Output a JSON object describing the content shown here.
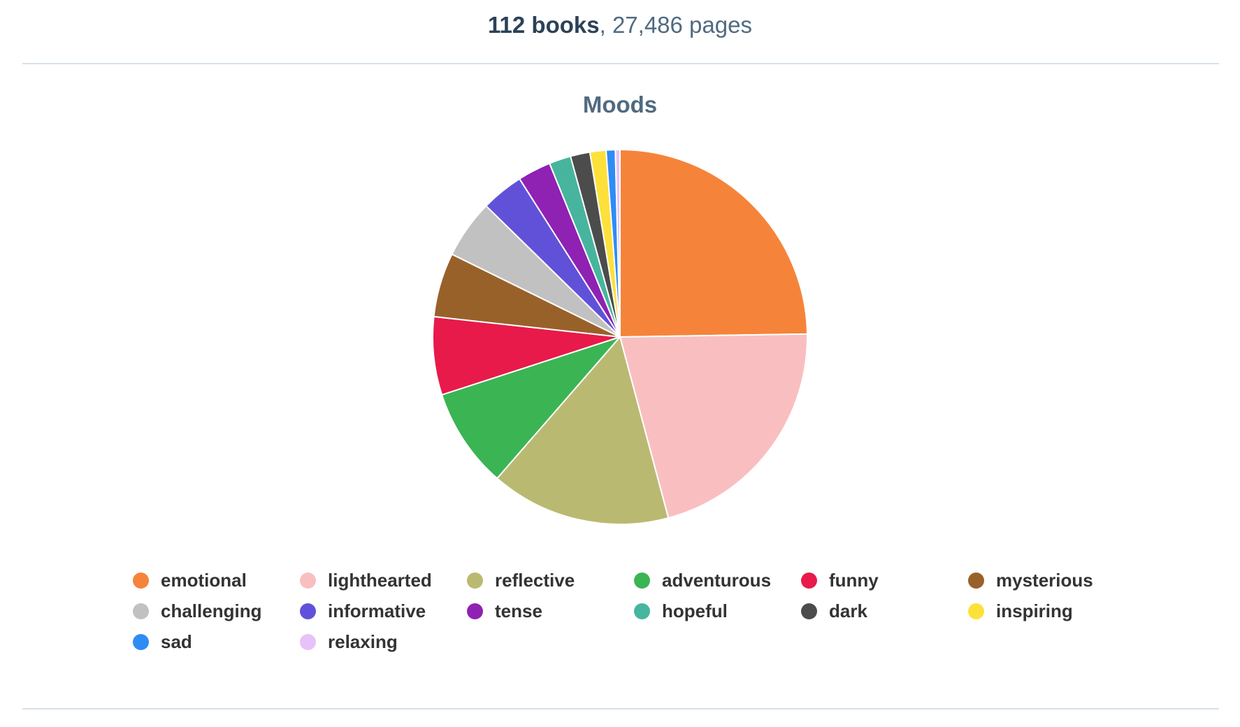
{
  "summary": {
    "books": "112 books",
    "separator": ",",
    "pages": " 27,486 pages"
  },
  "chart_data": {
    "type": "pie",
    "title": "Moods",
    "legend_position": "bottom",
    "series": [
      {
        "name": "",
        "data": [
          {
            "label": "emotional",
            "value": 25.0,
            "color": "#f5843a"
          },
          {
            "label": "lighthearted",
            "value": 21.3,
            "color": "#f9bfc0"
          },
          {
            "label": "reflective",
            "value": 15.7,
            "color": "#bab972"
          },
          {
            "label": "adventurous",
            "value": 8.7,
            "color": "#3bb454"
          },
          {
            "label": "funny",
            "value": 6.8,
            "color": "#e71a4a"
          },
          {
            "label": "mysterious",
            "value": 5.6,
            "color": "#99612a"
          },
          {
            "label": "challenging",
            "value": 5.1,
            "color": "#c1c1c1"
          },
          {
            "label": "informative",
            "value": 3.7,
            "color": "#6151d9"
          },
          {
            "label": "tense",
            "value": 2.9,
            "color": "#8f21b3"
          },
          {
            "label": "hopeful",
            "value": 1.9,
            "color": "#47b59e"
          },
          {
            "label": "dark",
            "value": 1.7,
            "color": "#4c4c4c"
          },
          {
            "label": "inspiring",
            "value": 1.4,
            "color": "#fde13a"
          },
          {
            "label": "sad",
            "value": 0.8,
            "color": "#2f8cf5"
          },
          {
            "label": "relaxing",
            "value": 0.4,
            "color": "#e6c2f8"
          }
        ]
      }
    ]
  }
}
